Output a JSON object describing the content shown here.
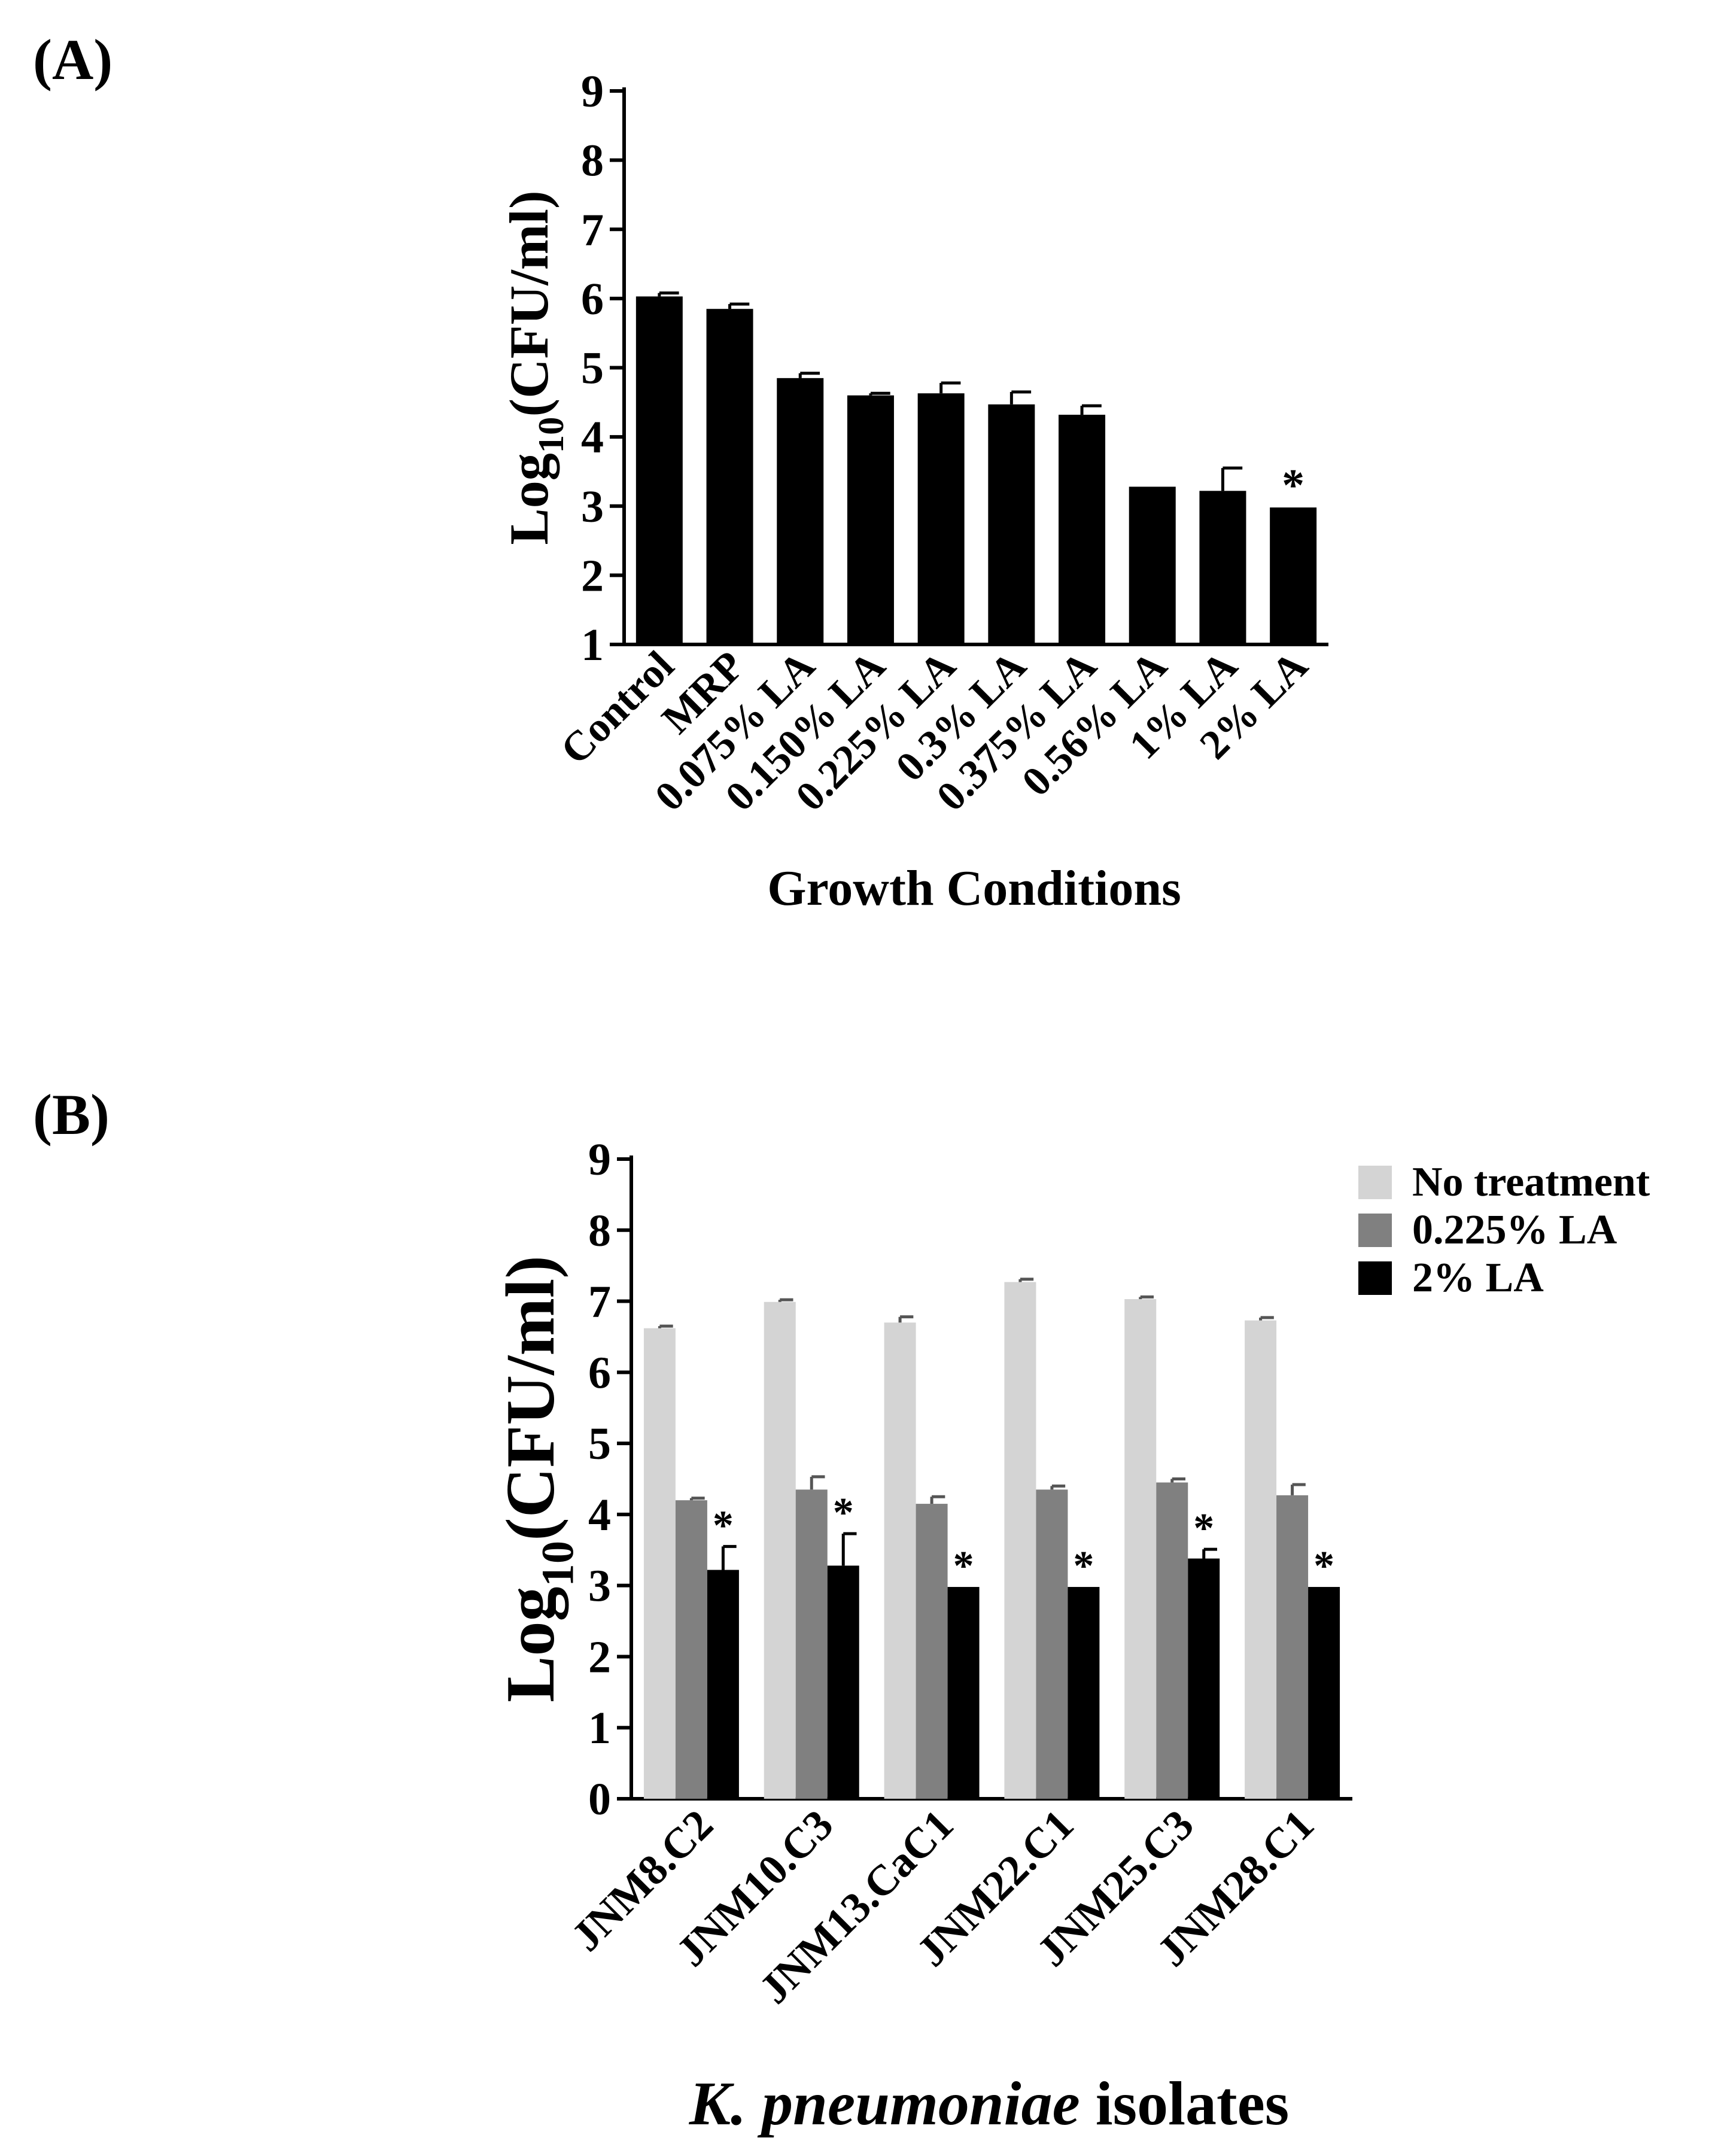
{
  "chart_data": [
    {
      "panel_label": "(A)",
      "type": "bar",
      "categories": [
        "Control",
        "MRP",
        "0.075% LA",
        "0.150% LA",
        "0.225% LA",
        "0.3% LA",
        "0.375% LA",
        "0.56% LA",
        "1% LA",
        "2% LA"
      ],
      "series": [
        {
          "name": "Log10(CFU/ml)",
          "color": "#000000",
          "values": [
            6.03,
            5.85,
            4.85,
            4.6,
            4.63,
            4.47,
            4.32,
            3.28,
            3.22,
            2.98
          ],
          "errors": [
            0.05,
            0.07,
            0.07,
            0.03,
            0.15,
            0.18,
            0.13,
            0.0,
            0.33,
            0.0
          ],
          "significant": [
            false,
            false,
            false,
            false,
            false,
            false,
            false,
            false,
            false,
            true
          ]
        }
      ],
      "significance_marker": "*",
      "ylim": [
        1,
        9
      ],
      "yticks": [
        1,
        2,
        3,
        4,
        5,
        6,
        7,
        8,
        9
      ],
      "ylabel_main": "Log",
      "ylabel_sub": "10",
      "ylabel_rest": "(CFU/ml)",
      "xlabel": "Growth Conditions",
      "legend": null
    },
    {
      "panel_label": "(B)",
      "type": "bar",
      "categories": [
        "JNM8.C2",
        "JNM10.C3",
        "JNM13.CaC1",
        "JNM22.C1",
        "JNM25.C3",
        "JNM28.C1"
      ],
      "series": [
        {
          "name": "No treatment",
          "color": "#d4d4d4",
          "values": [
            6.62,
            6.99,
            6.7,
            7.27,
            7.03,
            6.73
          ],
          "errors": [
            0.03,
            0.03,
            0.08,
            0.04,
            0.03,
            0.04
          ],
          "significant": [
            false,
            false,
            false,
            false,
            false,
            false
          ]
        },
        {
          "name": "0.225% LA",
          "color": "#808080",
          "values": [
            4.2,
            4.35,
            4.15,
            4.35,
            4.45,
            4.27
          ],
          "errors": [
            0.03,
            0.18,
            0.1,
            0.05,
            0.05,
            0.15
          ],
          "significant": [
            false,
            false,
            false,
            false,
            false,
            false
          ]
        },
        {
          "name": "2% LA",
          "color": "#000000",
          "values": [
            3.22,
            3.28,
            2.98,
            2.98,
            3.38,
            2.98
          ],
          "errors": [
            0.33,
            0.45,
            0.0,
            0.0,
            0.13,
            0.0
          ],
          "significant": [
            true,
            true,
            true,
            true,
            true,
            true
          ]
        }
      ],
      "significance_marker": "*",
      "ylim": [
        0,
        9
      ],
      "yticks": [
        0,
        1,
        2,
        3,
        4,
        5,
        6,
        7,
        8,
        9
      ],
      "ylabel_main": "Log",
      "ylabel_sub": "10",
      "ylabel_rest": "(CFU/ml)",
      "xlabel_italic": "K. pneumoniae",
      "xlabel_rest": " isolates",
      "legend": "top-right"
    }
  ]
}
